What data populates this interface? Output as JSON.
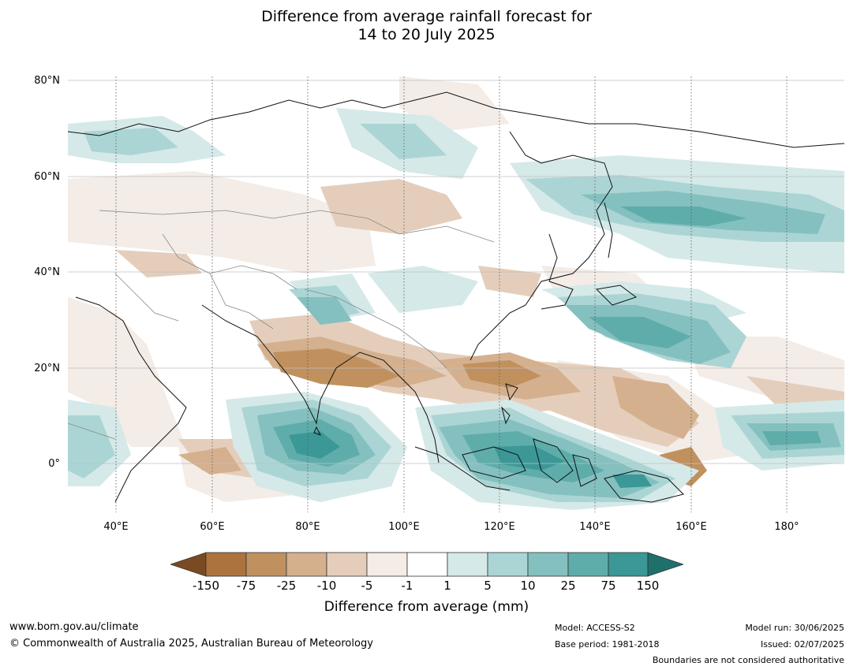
{
  "title": {
    "line1": "Difference from average rainfall forecast for",
    "line2": "14 to 20 July 2025"
  },
  "map": {
    "lat_labels": [
      "80°N",
      "60°N",
      "40°N",
      "20°N",
      "0°"
    ],
    "lon_labels": [
      "40°E",
      "60°E",
      "80°E",
      "100°E",
      "120°E",
      "140°E",
      "160°E",
      "180°"
    ]
  },
  "colorbar": {
    "ticks": [
      "-150",
      "-75",
      "-25",
      "-10",
      "-5",
      "-1",
      "1",
      "5",
      "10",
      "25",
      "75",
      "150"
    ],
    "colors": [
      "#7a4a22",
      "#ad733f",
      "#c0915f",
      "#d4b08e",
      "#e4cebb",
      "#f3ece7",
      "#ffffff",
      "#d5e9e9",
      "#abd5d4",
      "#84c0bf",
      "#5eadab",
      "#3b9896",
      "#1f6f6d"
    ],
    "title": "Difference from average (mm)"
  },
  "footer": {
    "website": "www.bom.gov.au/climate",
    "copyright": "© Commonwealth of Australia 2025, Australian Bureau of Meteorology",
    "model": "Model: ACCESS-S2",
    "base_period": "Base period: 1981-2018",
    "model_run": "Model run: 30/06/2025",
    "issued": "Issued: 02/07/2025",
    "boundaries": "Boundaries are not considered authoritative"
  }
}
